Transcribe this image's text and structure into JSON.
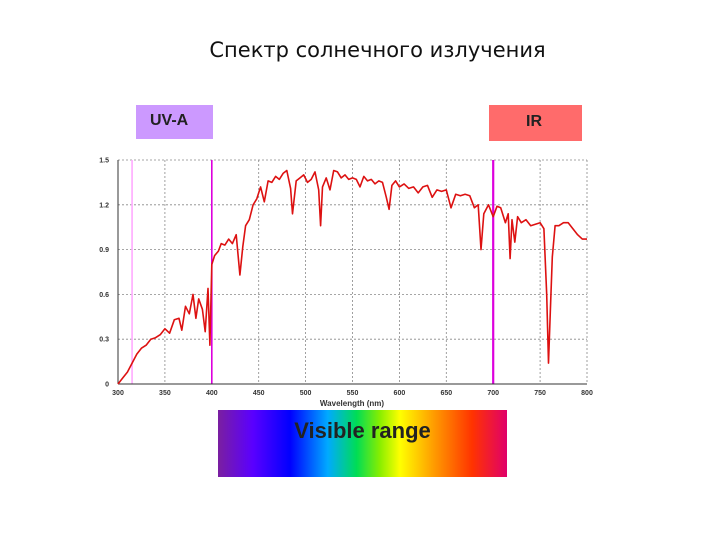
{
  "slide": {
    "title": "Спектр солнечного излучения",
    "uv_label": "UV-A",
    "ir_label": "IR",
    "visible_label": "Visible range"
  },
  "colors": {
    "uv_box": "#cc99ff",
    "ir_box": "#ff6b6b",
    "series": "#dd1111",
    "grid": "#888888",
    "markers": "#dd00dd"
  },
  "chart_data": {
    "type": "line",
    "xlabel": "Wavelength (nm)",
    "ylabel": "",
    "xlim": [
      300,
      800
    ],
    "ylim": [
      0,
      1.5
    ],
    "x_ticks": [
      300,
      350,
      400,
      450,
      500,
      550,
      600,
      650,
      700,
      750,
      800
    ],
    "y_ticks": [
      0,
      0.3,
      0.6,
      0.9,
      1.2,
      1.5
    ],
    "y_tick_labels": [
      "0",
      "0.3",
      "0.6",
      "0.9",
      "1.2",
      "1.5"
    ],
    "grid": true,
    "vertical_markers": [
      315,
      400,
      700
    ],
    "series": [
      {
        "values": [
          [
            300,
            0.0
          ],
          [
            305,
            0.04
          ],
          [
            310,
            0.08
          ],
          [
            315,
            0.14
          ],
          [
            320,
            0.2
          ],
          [
            325,
            0.24
          ],
          [
            330,
            0.26
          ],
          [
            335,
            0.3
          ],
          [
            340,
            0.31
          ],
          [
            345,
            0.33
          ],
          [
            350,
            0.37
          ],
          [
            355,
            0.34
          ],
          [
            360,
            0.43
          ],
          [
            365,
            0.44
          ],
          [
            368,
            0.36
          ],
          [
            372,
            0.52
          ],
          [
            376,
            0.47
          ],
          [
            380,
            0.6
          ],
          [
            383,
            0.44
          ],
          [
            386,
            0.57
          ],
          [
            390,
            0.5
          ],
          [
            393,
            0.35
          ],
          [
            396,
            0.64
          ],
          [
            398,
            0.26
          ],
          [
            400,
            0.8
          ],
          [
            403,
            0.86
          ],
          [
            407,
            0.89
          ],
          [
            410,
            0.94
          ],
          [
            414,
            0.93
          ],
          [
            418,
            0.97
          ],
          [
            422,
            0.94
          ],
          [
            426,
            1.0
          ],
          [
            430,
            0.73
          ],
          [
            433,
            0.92
          ],
          [
            436,
            1.06
          ],
          [
            440,
            1.1
          ],
          [
            444,
            1.2
          ],
          [
            448,
            1.24
          ],
          [
            452,
            1.32
          ],
          [
            456,
            1.22
          ],
          [
            460,
            1.36
          ],
          [
            464,
            1.35
          ],
          [
            468,
            1.39
          ],
          [
            472,
            1.37
          ],
          [
            476,
            1.41
          ],
          [
            480,
            1.43
          ],
          [
            484,
            1.31
          ],
          [
            486,
            1.14
          ],
          [
            490,
            1.36
          ],
          [
            494,
            1.38
          ],
          [
            498,
            1.4
          ],
          [
            502,
            1.35
          ],
          [
            506,
            1.37
          ],
          [
            510,
            1.42
          ],
          [
            514,
            1.3
          ],
          [
            516,
            1.06
          ],
          [
            518,
            1.32
          ],
          [
            522,
            1.38
          ],
          [
            526,
            1.3
          ],
          [
            530,
            1.43
          ],
          [
            534,
            1.42
          ],
          [
            538,
            1.38
          ],
          [
            542,
            1.4
          ],
          [
            546,
            1.37
          ],
          [
            550,
            1.38
          ],
          [
            554,
            1.37
          ],
          [
            558,
            1.32
          ],
          [
            562,
            1.39
          ],
          [
            566,
            1.36
          ],
          [
            570,
            1.37
          ],
          [
            574,
            1.34
          ],
          [
            578,
            1.36
          ],
          [
            582,
            1.35
          ],
          [
            586,
            1.25
          ],
          [
            589,
            1.17
          ],
          [
            592,
            1.33
          ],
          [
            596,
            1.36
          ],
          [
            600,
            1.32
          ],
          [
            605,
            1.34
          ],
          [
            610,
            1.31
          ],
          [
            615,
            1.32
          ],
          [
            620,
            1.28
          ],
          [
            625,
            1.32
          ],
          [
            630,
            1.33
          ],
          [
            635,
            1.25
          ],
          [
            640,
            1.3
          ],
          [
            645,
            1.29
          ],
          [
            650,
            1.3
          ],
          [
            655,
            1.18
          ],
          [
            660,
            1.27
          ],
          [
            665,
            1.26
          ],
          [
            670,
            1.27
          ],
          [
            675,
            1.26
          ],
          [
            680,
            1.18
          ],
          [
            684,
            1.2
          ],
          [
            687,
            0.9
          ],
          [
            690,
            1.14
          ],
          [
            695,
            1.2
          ],
          [
            700,
            1.12
          ],
          [
            704,
            1.19
          ],
          [
            708,
            1.18
          ],
          [
            713,
            1.08
          ],
          [
            716,
            1.14
          ],
          [
            718,
            0.84
          ],
          [
            720,
            1.1
          ],
          [
            723,
            0.95
          ],
          [
            726,
            1.12
          ],
          [
            730,
            1.08
          ],
          [
            735,
            1.1
          ],
          [
            740,
            1.06
          ],
          [
            745,
            1.07
          ],
          [
            750,
            1.08
          ],
          [
            754,
            1.04
          ],
          [
            757,
            0.6
          ],
          [
            759,
            0.14
          ],
          [
            761,
            0.5
          ],
          [
            763,
            0.85
          ],
          [
            766,
            1.06
          ],
          [
            770,
            1.06
          ],
          [
            775,
            1.08
          ],
          [
            780,
            1.08
          ],
          [
            785,
            1.04
          ],
          [
            790,
            1.0
          ],
          [
            795,
            0.97
          ],
          [
            800,
            0.97
          ]
        ]
      }
    ]
  }
}
